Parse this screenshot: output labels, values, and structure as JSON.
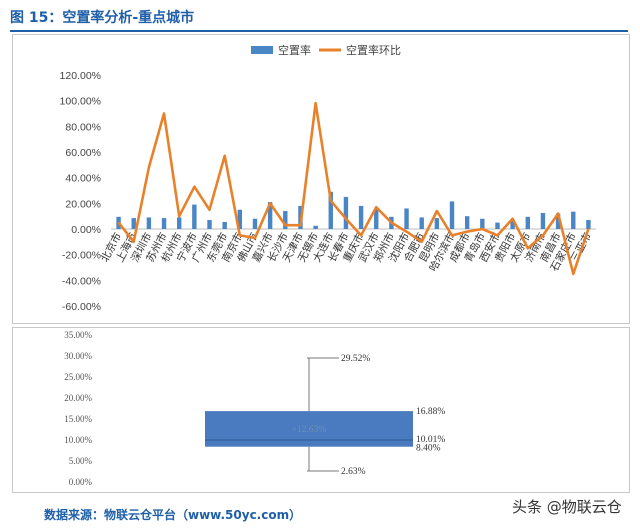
{
  "figure": {
    "title": "图 15：空置率分析-重点城市",
    "source": "数据来源：物联云仓平台（www.50yc.com）",
    "watermark": "头条 @物联云仓"
  },
  "colors": {
    "bar": "#4a86c5",
    "line": "#e8812a",
    "box": "#4a7bc0",
    "brand": "#1f5fa8"
  },
  "chart_data": [
    {
      "type": "bar",
      "legend": [
        "空置率",
        "空置率环比"
      ],
      "legend_position": "top",
      "categories": [
        "北京市",
        "上海市",
        "深圳市",
        "苏州市",
        "杭州市",
        "宁波市",
        "广州市",
        "东莞市",
        "南京市",
        "佛山市",
        "嘉兴市",
        "长沙市",
        "天津市",
        "无锡市",
        "大连市",
        "长春市",
        "重庆市",
        "武汉市",
        "郑州市",
        "沈阳市",
        "合肥市",
        "昆明市",
        "哈尔滨市",
        "成都市",
        "青岛市",
        "西安市",
        "贵阳市",
        "太原市",
        "济南市",
        "南昌市",
        "石家庄市",
        "三亚市"
      ],
      "series": [
        {
          "name": "空置率",
          "type": "bar",
          "values": [
            9.5,
            8.5,
            9.0,
            8.5,
            9.0,
            19.0,
            7.0,
            5.5,
            15.0,
            8.0,
            21.0,
            14.0,
            18.0,
            2.5,
            29.0,
            25.0,
            18.0,
            16.0,
            9.5,
            16.0,
            9.0,
            8.5,
            21.5,
            10.0,
            8.0,
            5.0,
            7.0,
            9.5,
            12.5,
            12.0,
            13.5,
            7.0
          ]
        },
        {
          "name": "空置率环比",
          "type": "line",
          "values": [
            5.0,
            -10.0,
            48.0,
            90.0,
            10.0,
            33.0,
            15.0,
            57.0,
            -5.0,
            -7.0,
            20.0,
            3.0,
            3.0,
            98.0,
            22.0,
            8.0,
            -5.0,
            17.0,
            5.0,
            -2.0,
            -10.0,
            14.0,
            -5.0,
            -2.0,
            0.0,
            -5.0,
            8.0,
            -15.0,
            -5.0,
            12.0,
            -35.0,
            0.0
          ]
        }
      ],
      "yticks": [
        "120.00%",
        "100.00%",
        "80.00%",
        "60.00%",
        "40.00%",
        "20.00%",
        "0.00%",
        "-20.00%",
        "-40.00%",
        "-60.00%"
      ],
      "ylim": [
        -60,
        120
      ],
      "grid": false
    },
    {
      "type": "box",
      "min": 2.63,
      "q1": 8.4,
      "median": 10.01,
      "q3": 16.88,
      "max": 29.52,
      "mean": 12.63,
      "labels": {
        "min": "2.63%",
        "q1": "8.40%",
        "median": "10.01%",
        "q3": "16.88%",
        "max": "29.52%",
        "mean": "×12.63%"
      },
      "yticks": [
        "35.00%",
        "30.00%",
        "25.00%",
        "20.00%",
        "15.00%",
        "10.00%",
        "5.00%",
        "0.00%"
      ],
      "ylim": [
        0,
        35
      ],
      "grid": false
    }
  ]
}
